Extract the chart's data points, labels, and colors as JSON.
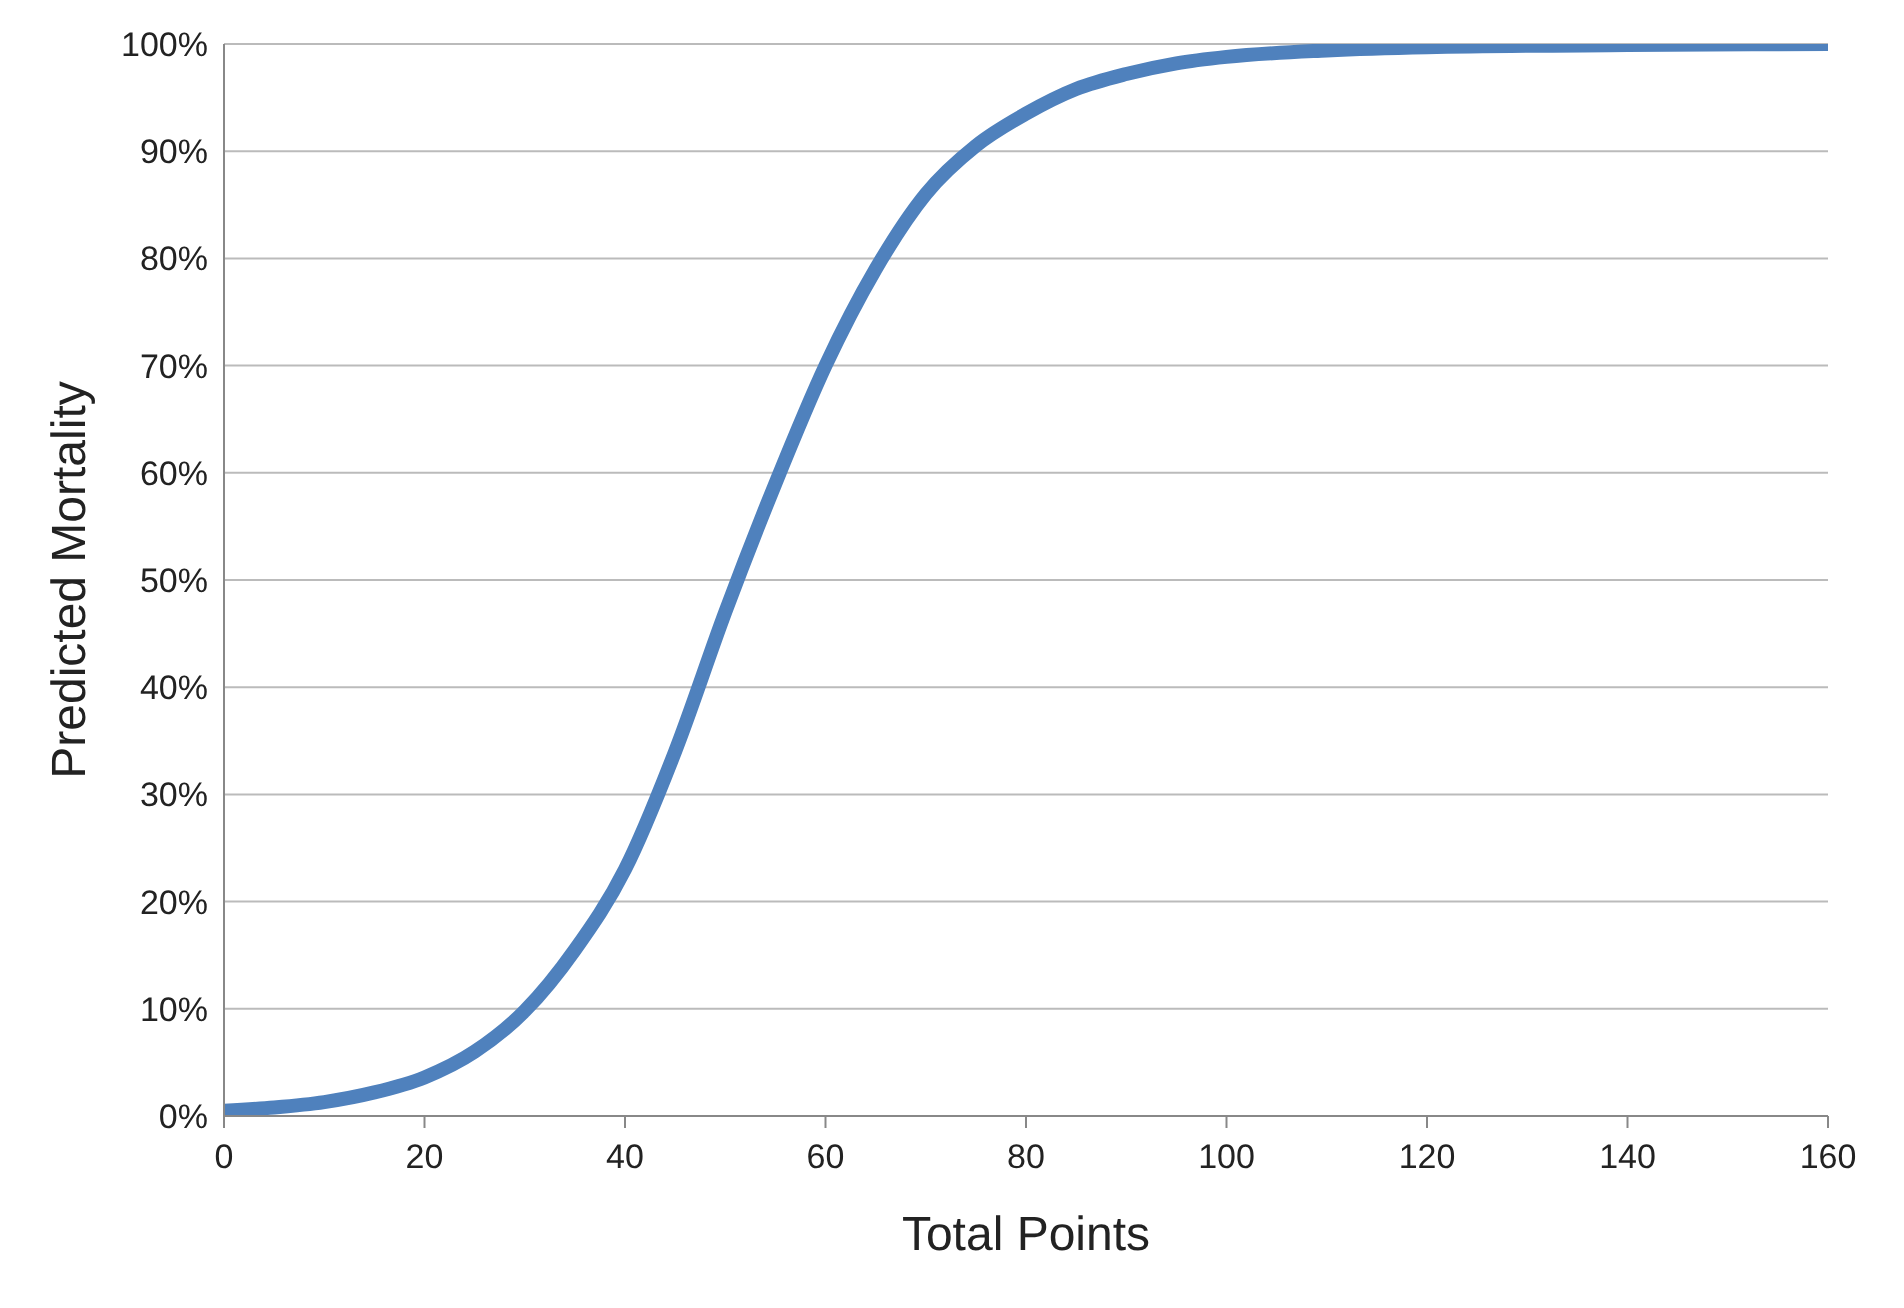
{
  "chart_data": {
    "type": "line",
    "xlabel": "Total Points",
    "ylabel": "Predicted Mortality",
    "x": [
      0,
      5,
      10,
      15,
      20,
      25,
      30,
      35,
      40,
      45,
      50,
      55,
      60,
      65,
      70,
      75,
      80,
      85,
      90,
      95,
      100,
      110,
      120,
      140,
      160
    ],
    "series": [
      {
        "color": "#4f81bd",
        "values": [
          0.5,
          0.8,
          1.3,
          2.2,
          3.6,
          6,
          9.8,
          15.5,
          23,
          34,
          47,
          59,
          70,
          79,
          86,
          90.5,
          93.5,
          95.8,
          97.2,
          98.2,
          98.8,
          99.4,
          99.7,
          99.9,
          100
        ]
      }
    ],
    "xlim": [
      0,
      160
    ],
    "xticks": [
      0,
      20,
      40,
      60,
      80,
      100,
      120,
      140,
      160
    ],
    "ylim": [
      0,
      100
    ],
    "yticks": [
      {
        "value": 0,
        "label": "0%"
      },
      {
        "value": 10,
        "label": "10%"
      },
      {
        "value": 20,
        "label": "20%"
      },
      {
        "value": 30,
        "label": "30%"
      },
      {
        "value": 40,
        "label": "40%"
      },
      {
        "value": 50,
        "label": "50%"
      },
      {
        "value": 60,
        "label": "60%"
      },
      {
        "value": 70,
        "label": "70%"
      },
      {
        "value": 80,
        "label": "80%"
      },
      {
        "value": 90,
        "label": "90%"
      },
      {
        "value": 100,
        "label": "100%"
      }
    ],
    "grid": "y",
    "marker": "none",
    "line_style": "solid"
  }
}
